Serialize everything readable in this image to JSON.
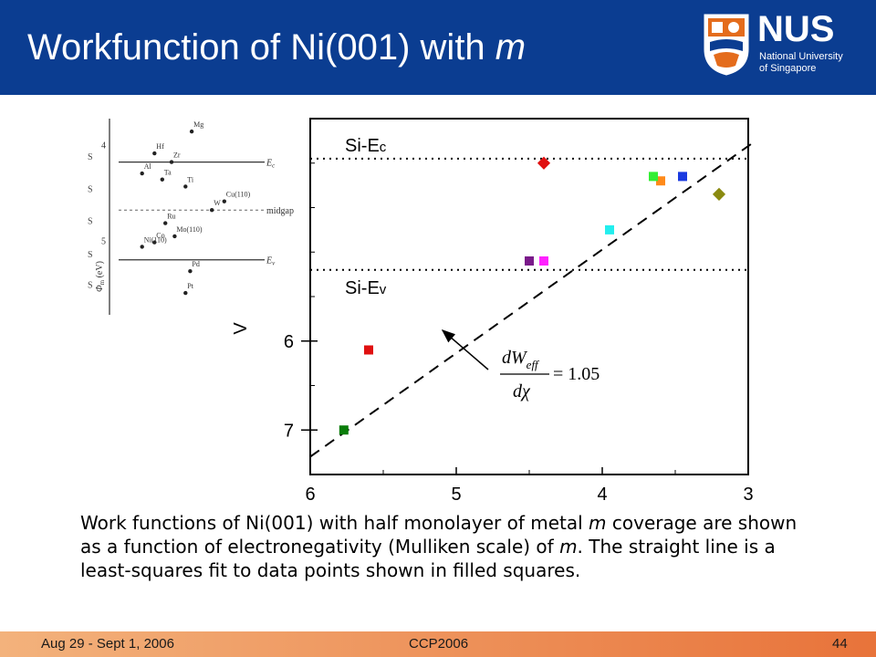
{
  "slide": {
    "title_main": "Workfunction of Ni(001) with ",
    "title_var": "m",
    "logo_word": "NUS",
    "logo_line1": "National University",
    "logo_line2": "of Singapore"
  },
  "caption": {
    "part1": "Work functions of Ni(001) with half monolayer of metal ",
    "m1": "m",
    "part2": " coverage are shown as a function of electronegativity (Mulliken scale) of ",
    "m2": "m",
    "part3": ". The straight line is a least-squares fit to data points shown in filled squares."
  },
  "footer": {
    "date": "Aug 29 - Sept 1, 2006",
    "conference": "CCP2006",
    "page": "44"
  },
  "chart_data": [
    {
      "type": "scatter",
      "xlim": [
        6,
        3
      ],
      "ylim": [
        7.5,
        3.5
      ],
      "x_ticks": [
        "6",
        "5",
        "4",
        "3"
      ],
      "y_ticks": [
        "6",
        "7"
      ],
      "y_axis_label_fragment": "V",
      "reference_lines": [
        {
          "label_main": "Si-E",
          "label_sub": "c",
          "y": 3.95
        },
        {
          "label_main": "Si-E",
          "label_sub": "v",
          "y": 5.2
        }
      ],
      "fit_line": {
        "x": [
          6.0,
          2.95
        ],
        "y": [
          7.3,
          3.75
        ]
      },
      "annotation": {
        "numerator": "dW",
        "numerator_sub": "eff",
        "denominator": "dχ",
        "value": "= 1.05"
      },
      "points": [
        {
          "x": 5.77,
          "y": 7.0,
          "marker": "square",
          "color": "#0a7d0a"
        },
        {
          "x": 5.6,
          "y": 6.1,
          "marker": "square",
          "color": "#e01010"
        },
        {
          "x": 4.5,
          "y": 5.1,
          "marker": "square",
          "color": "#7a1a8a"
        },
        {
          "x": 4.4,
          "y": 5.1,
          "marker": "square",
          "color": "#ff22ff"
        },
        {
          "x": 4.4,
          "y": 4.0,
          "marker": "diamond",
          "color": "#e01010"
        },
        {
          "x": 3.95,
          "y": 4.75,
          "marker": "square",
          "color": "#22eeee"
        },
        {
          "x": 3.6,
          "y": 4.2,
          "marker": "square",
          "color": "#ff8a1a"
        },
        {
          "x": 3.65,
          "y": 4.15,
          "marker": "square",
          "color": "#33ee33"
        },
        {
          "x": 3.45,
          "y": 4.15,
          "marker": "square",
          "color": "#1a3ae0"
        },
        {
          "x": 3.2,
          "y": 4.35,
          "marker": "diamond",
          "color": "#8a8a10"
        }
      ]
    },
    {
      "type": "scatter",
      "y_label_main": "Φ",
      "y_label_sub": "m",
      "y_label_unit": " (eV)",
      "y_ticks": [
        "4",
        "5"
      ],
      "side_ticks": [
        "S",
        "S",
        "S",
        "S",
        "S"
      ],
      "level_labels": [
        {
          "main": "E",
          "sub": "c"
        },
        {
          "main": "E",
          "sub": "v"
        }
      ],
      "midgap_label": "midgap",
      "points": [
        {
          "label": "Mg",
          "x": 0.53,
          "y": 3.7
        },
        {
          "label": "Hf",
          "x": 0.29,
          "y": 3.95
        },
        {
          "label": "Zr",
          "x": 0.4,
          "y": 4.05
        },
        {
          "label": "Al",
          "x": 0.21,
          "y": 4.18
        },
        {
          "label": "Ta",
          "x": 0.34,
          "y": 4.25
        },
        {
          "label": "Ti",
          "x": 0.49,
          "y": 4.33
        },
        {
          "label": "W",
          "x": 0.66,
          "y": 4.6
        },
        {
          "label": "Cu(110)",
          "x": 0.74,
          "y": 4.5
        },
        {
          "label": "Ru",
          "x": 0.36,
          "y": 4.75
        },
        {
          "label": "Mo(110)",
          "x": 0.42,
          "y": 4.9
        },
        {
          "label": "Co",
          "x": 0.29,
          "y": 4.97
        },
        {
          "label": "Ni(110)",
          "x": 0.21,
          "y": 5.02
        },
        {
          "label": "Pd",
          "x": 0.52,
          "y": 5.3
        },
        {
          "label": "Pt",
          "x": 0.49,
          "y": 5.55
        }
      ]
    }
  ]
}
